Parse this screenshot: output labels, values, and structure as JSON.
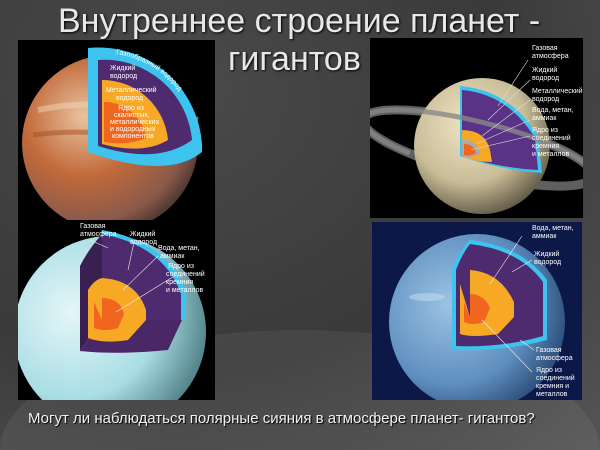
{
  "title": {
    "line1": "Внутреннее строение планет -",
    "line2": "гигантов"
  },
  "jupiter": {
    "outer": "Газообразный водород",
    "liquid": [
      "Жидкий",
      "водород"
    ],
    "metallic": [
      "Металлический",
      "водород"
    ],
    "core": [
      "Ядро из",
      "скалистых,",
      "металлических",
      "и водородных",
      "компонентов"
    ]
  },
  "saturn": {
    "gas": [
      "Газовая",
      "атмосфера"
    ],
    "liquid": [
      "Жидкий",
      "водород"
    ],
    "metallic": [
      "Металлический",
      "водород"
    ],
    "ices": [
      "Вода, метан,",
      "аммиак"
    ],
    "core": [
      "Ядро из",
      "соединений",
      "кремния",
      "и металлов"
    ]
  },
  "uranus": {
    "gas": [
      "Газовая",
      "атмосфера"
    ],
    "liquid": [
      "Жидкий",
      "водород"
    ],
    "ices": [
      "Вода, метан,",
      "аммиак"
    ],
    "core": [
      "Ядро из",
      "соединений",
      "кремния",
      "и металлов"
    ]
  },
  "neptune": {
    "ices": [
      "Вода, метан,",
      "аммиак"
    ],
    "liquid": [
      "Жидкий",
      "водород"
    ],
    "gas": [
      "Газовая",
      "атмосфера"
    ],
    "core": [
      "Ядро из",
      "соединений",
      "кремния и",
      "металлов"
    ]
  },
  "question": "Могут ли наблюдаться полярные сияния в атмосфере планет- гигантов?",
  "colors": {
    "cyan": "#3cc4ee",
    "purple": "#4e2a6e",
    "orange": "#f7a824",
    "core": "#f0661e",
    "background": "#3f3f3f"
  }
}
